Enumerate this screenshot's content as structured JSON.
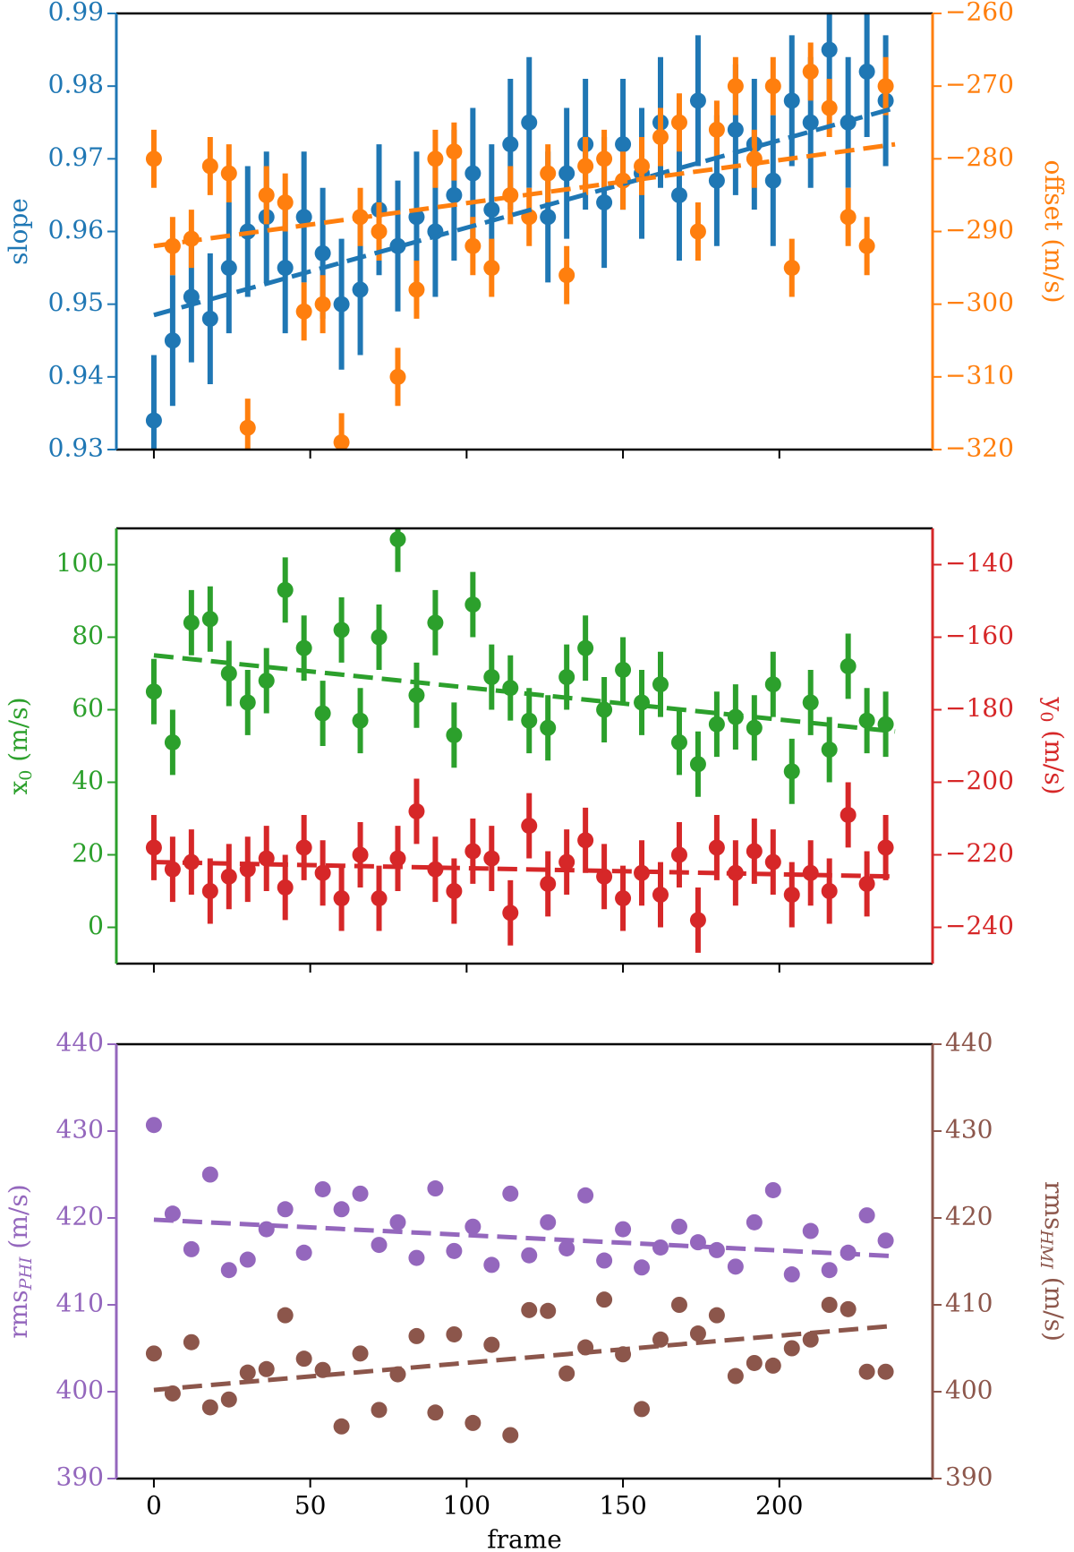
{
  "chart_data": [
    {
      "type": "errorbar",
      "x": [
        0,
        6,
        12,
        18,
        24,
        30,
        36,
        42,
        48,
        54,
        60,
        66,
        72,
        78,
        84,
        90,
        96,
        102,
        108,
        114,
        120,
        126,
        132,
        138,
        144,
        150,
        156,
        162,
        168,
        174,
        180,
        186,
        192,
        198,
        204,
        210,
        216,
        222,
        228,
        234
      ],
      "xlim": [
        -12,
        249
      ],
      "xticks": [
        0,
        50,
        100,
        150,
        200
      ],
      "xticklabels": false,
      "ylim": [
        0.93,
        0.99
      ],
      "yticks": [
        0.93,
        0.94,
        0.95,
        0.96,
        0.97,
        0.98,
        0.99
      ],
      "y2lim": [
        -320,
        -260
      ],
      "y2ticks": [
        {
          "value": -320,
          "label": "−320"
        },
        {
          "value": -310,
          "label": "−310"
        },
        {
          "value": -300,
          "label": "−300"
        },
        {
          "value": -290,
          "label": "−290"
        },
        {
          "value": -280,
          "label": "−280"
        },
        {
          "value": -270,
          "label": "−270"
        },
        {
          "value": -260,
          "label": "−260"
        }
      ],
      "ylabel": {
        "base": "slope"
      },
      "y2label": {
        "base": "offset (m/s)"
      },
      "series": [
        {
          "color": "#1f77b4",
          "axis": "y",
          "values": [
            0.934,
            0.945,
            0.951,
            0.948,
            0.955,
            0.96,
            0.962,
            0.955,
            0.962,
            0.957,
            0.95,
            0.952,
            0.963,
            0.958,
            0.962,
            0.96,
            0.965,
            0.968,
            0.963,
            0.972,
            0.975,
            0.962,
            0.968,
            0.972,
            0.964,
            0.972,
            0.968,
            0.975,
            0.965,
            0.978,
            0.967,
            0.974,
            0.972,
            0.967,
            0.978,
            0.975,
            0.985,
            0.975,
            0.982,
            0.978
          ],
          "errors": [
            0.009,
            0.009,
            0.009,
            0.009,
            0.009,
            0.009,
            0.009,
            0.009,
            0.009,
            0.009,
            0.009,
            0.009,
            0.009,
            0.009,
            0.009,
            0.009,
            0.009,
            0.009,
            0.009,
            0.009,
            0.009,
            0.009,
            0.009,
            0.009,
            0.009,
            0.009,
            0.009,
            0.009,
            0.009,
            0.009,
            0.009,
            0.009,
            0.009,
            0.009,
            0.009,
            0.009,
            0.009,
            0.009,
            0.009,
            0.009
          ],
          "fit": {
            "x": [
              0,
              237
            ],
            "values": [
              0.9485,
              0.977
            ]
          }
        },
        {
          "color": "#ff7f0e",
          "axis": "y2",
          "values": [
            -280,
            -292,
            -291,
            -281,
            -282,
            -317,
            -285,
            -286,
            -301,
            -300,
            -319,
            -288,
            -290,
            -310,
            -298,
            -280,
            -279,
            -292,
            -295,
            -285,
            -288,
            -282,
            -296,
            -281,
            -280,
            -283,
            -281,
            -277,
            -275,
            -290,
            -276,
            -270,
            -280,
            -270,
            -295,
            -268,
            -273,
            -288,
            -292,
            -270
          ],
          "errors": [
            4,
            4,
            4,
            4,
            4,
            4,
            4,
            4,
            4,
            4,
            4,
            4,
            4,
            4,
            4,
            4,
            4,
            4,
            4,
            4,
            4,
            4,
            4,
            4,
            4,
            4,
            4,
            4,
            4,
            4,
            4,
            4,
            4,
            4,
            4,
            4,
            4,
            4,
            4,
            4
          ],
          "fit": {
            "x": [
              0,
              237
            ],
            "values": [
              -292,
              -278
            ]
          }
        }
      ]
    },
    {
      "type": "errorbar",
      "x": [
        0,
        6,
        12,
        18,
        24,
        30,
        36,
        42,
        48,
        54,
        60,
        66,
        72,
        78,
        84,
        90,
        96,
        102,
        108,
        114,
        120,
        126,
        132,
        138,
        144,
        150,
        156,
        162,
        168,
        174,
        180,
        186,
        192,
        198,
        204,
        210,
        216,
        222,
        228,
        234
      ],
      "xlim": [
        -12,
        249
      ],
      "xticks": [
        0,
        50,
        100,
        150,
        200
      ],
      "xticklabels": false,
      "ylim": [
        -10,
        110
      ],
      "yticks": [
        0,
        20,
        40,
        60,
        80,
        100
      ],
      "y2lim": [
        -250,
        -130
      ],
      "y2ticks": [
        {
          "value": -240,
          "label": "−240"
        },
        {
          "value": -220,
          "label": "−220"
        },
        {
          "value": -200,
          "label": "−200"
        },
        {
          "value": -180,
          "label": "−180"
        },
        {
          "value": -160,
          "label": "−160"
        },
        {
          "value": -140,
          "label": "−140"
        }
      ],
      "ylabel": {
        "base": "x",
        "sub": "0",
        "unit": "(m/s)"
      },
      "y2label": {
        "base": "y",
        "sub": "0",
        "unit": "(m/s)"
      },
      "series": [
        {
          "color": "#2ca02c",
          "axis": "y",
          "values": [
            65,
            51,
            84,
            85,
            70,
            62,
            68,
            93,
            77,
            59,
            82,
            57,
            80,
            107,
            64,
            84,
            53,
            89,
            69,
            66,
            57,
            55,
            69,
            77,
            60,
            71,
            62,
            67,
            51,
            45,
            56,
            58,
            55,
            67,
            43,
            62,
            49,
            72,
            57,
            56
          ],
          "errors": [
            9,
            9,
            9,
            9,
            9,
            9,
            9,
            9,
            9,
            9,
            9,
            9,
            9,
            9,
            9,
            9,
            9,
            9,
            9,
            9,
            9,
            9,
            9,
            9,
            9,
            9,
            9,
            9,
            9,
            9,
            9,
            9,
            9,
            9,
            9,
            9,
            9,
            9,
            9,
            9
          ],
          "fit": {
            "x": [
              0,
              237
            ],
            "values": [
              75,
              54
            ]
          }
        },
        {
          "color": "#d62728",
          "axis": "y2",
          "values": [
            -218,
            -224,
            -222,
            -230,
            -226,
            -224,
            -221,
            -229,
            -218,
            -225,
            -232,
            -220,
            -232,
            -221,
            -208,
            -224,
            -230,
            -219,
            -221,
            -236,
            -212,
            -228,
            -222,
            -216,
            -226,
            -232,
            -225,
            -231,
            -220,
            -238,
            -218,
            -225,
            -219,
            -222,
            -231,
            -225,
            -230,
            -209,
            -228,
            -218
          ],
          "errors": [
            9,
            9,
            9,
            9,
            9,
            9,
            9,
            9,
            9,
            9,
            9,
            9,
            9,
            9,
            9,
            9,
            9,
            9,
            9,
            9,
            9,
            9,
            9,
            9,
            9,
            9,
            9,
            9,
            9,
            9,
            9,
            9,
            9,
            9,
            9,
            9,
            9,
            9,
            9,
            9
          ],
          "fit": {
            "x": [
              0,
              237
            ],
            "values": [
              -222,
              -226
            ]
          }
        }
      ]
    },
    {
      "type": "scatter",
      "x": [
        0,
        6,
        12,
        18,
        24,
        30,
        36,
        42,
        48,
        54,
        60,
        66,
        72,
        78,
        84,
        90,
        96,
        102,
        108,
        114,
        120,
        126,
        132,
        138,
        144,
        150,
        156,
        162,
        168,
        174,
        180,
        186,
        192,
        198,
        204,
        210,
        216,
        222,
        228,
        234
      ],
      "xlim": [
        -12,
        249
      ],
      "xticks": [
        0,
        50,
        100,
        150,
        200
      ],
      "xticklabels": true,
      "xlabel": "frame",
      "ylim": [
        390,
        440
      ],
      "yticks": [
        390,
        400,
        410,
        420,
        430,
        440
      ],
      "y2lim": [
        390,
        440
      ],
      "y2ticks": [
        390,
        400,
        410,
        420,
        430,
        440
      ],
      "ylabel": {
        "base": "rms",
        "sub": "PHI",
        "unit": "(m/s)"
      },
      "y2label": {
        "base": "rms",
        "sub": "HMI",
        "unit": "(m/s)"
      },
      "series": [
        {
          "color": "#9467bd",
          "axis": "y",
          "values": [
            430.7,
            420.5,
            416.4,
            425,
            414,
            415.2,
            418.7,
            421,
            416,
            423.3,
            421,
            422.8,
            416.9,
            419.5,
            415.4,
            423.4,
            416.2,
            419,
            414.6,
            422.8,
            415.7,
            419.5,
            416.5,
            422.6,
            415.1,
            418.7,
            414.3,
            416.6,
            419,
            417.2,
            416.3,
            414.4,
            419.5,
            423.2,
            413.5,
            418.5,
            414,
            416,
            420.3,
            417.4
          ],
          "fit": {
            "x": [
              0,
              237
            ],
            "values": [
              419.8,
              415.6
            ]
          }
        },
        {
          "color": "#8c564b",
          "axis": "y2",
          "values": [
            404.4,
            399.8,
            405.7,
            398.2,
            399.1,
            402.2,
            402.6,
            408.8,
            403.8,
            402.5,
            396,
            404.4,
            397.9,
            402,
            406.4,
            397.6,
            406.6,
            396.4,
            405.4,
            395,
            409.4,
            409.3,
            402.1,
            405.1,
            410.6,
            404.3,
            398,
            406,
            410,
            406.7,
            408.8,
            401.8,
            403.3,
            403,
            405,
            406,
            410,
            409.5,
            402.3,
            402.3
          ],
          "fit": {
            "x": [
              0,
              237
            ],
            "values": [
              400.2,
              407.6
            ]
          }
        }
      ]
    }
  ]
}
